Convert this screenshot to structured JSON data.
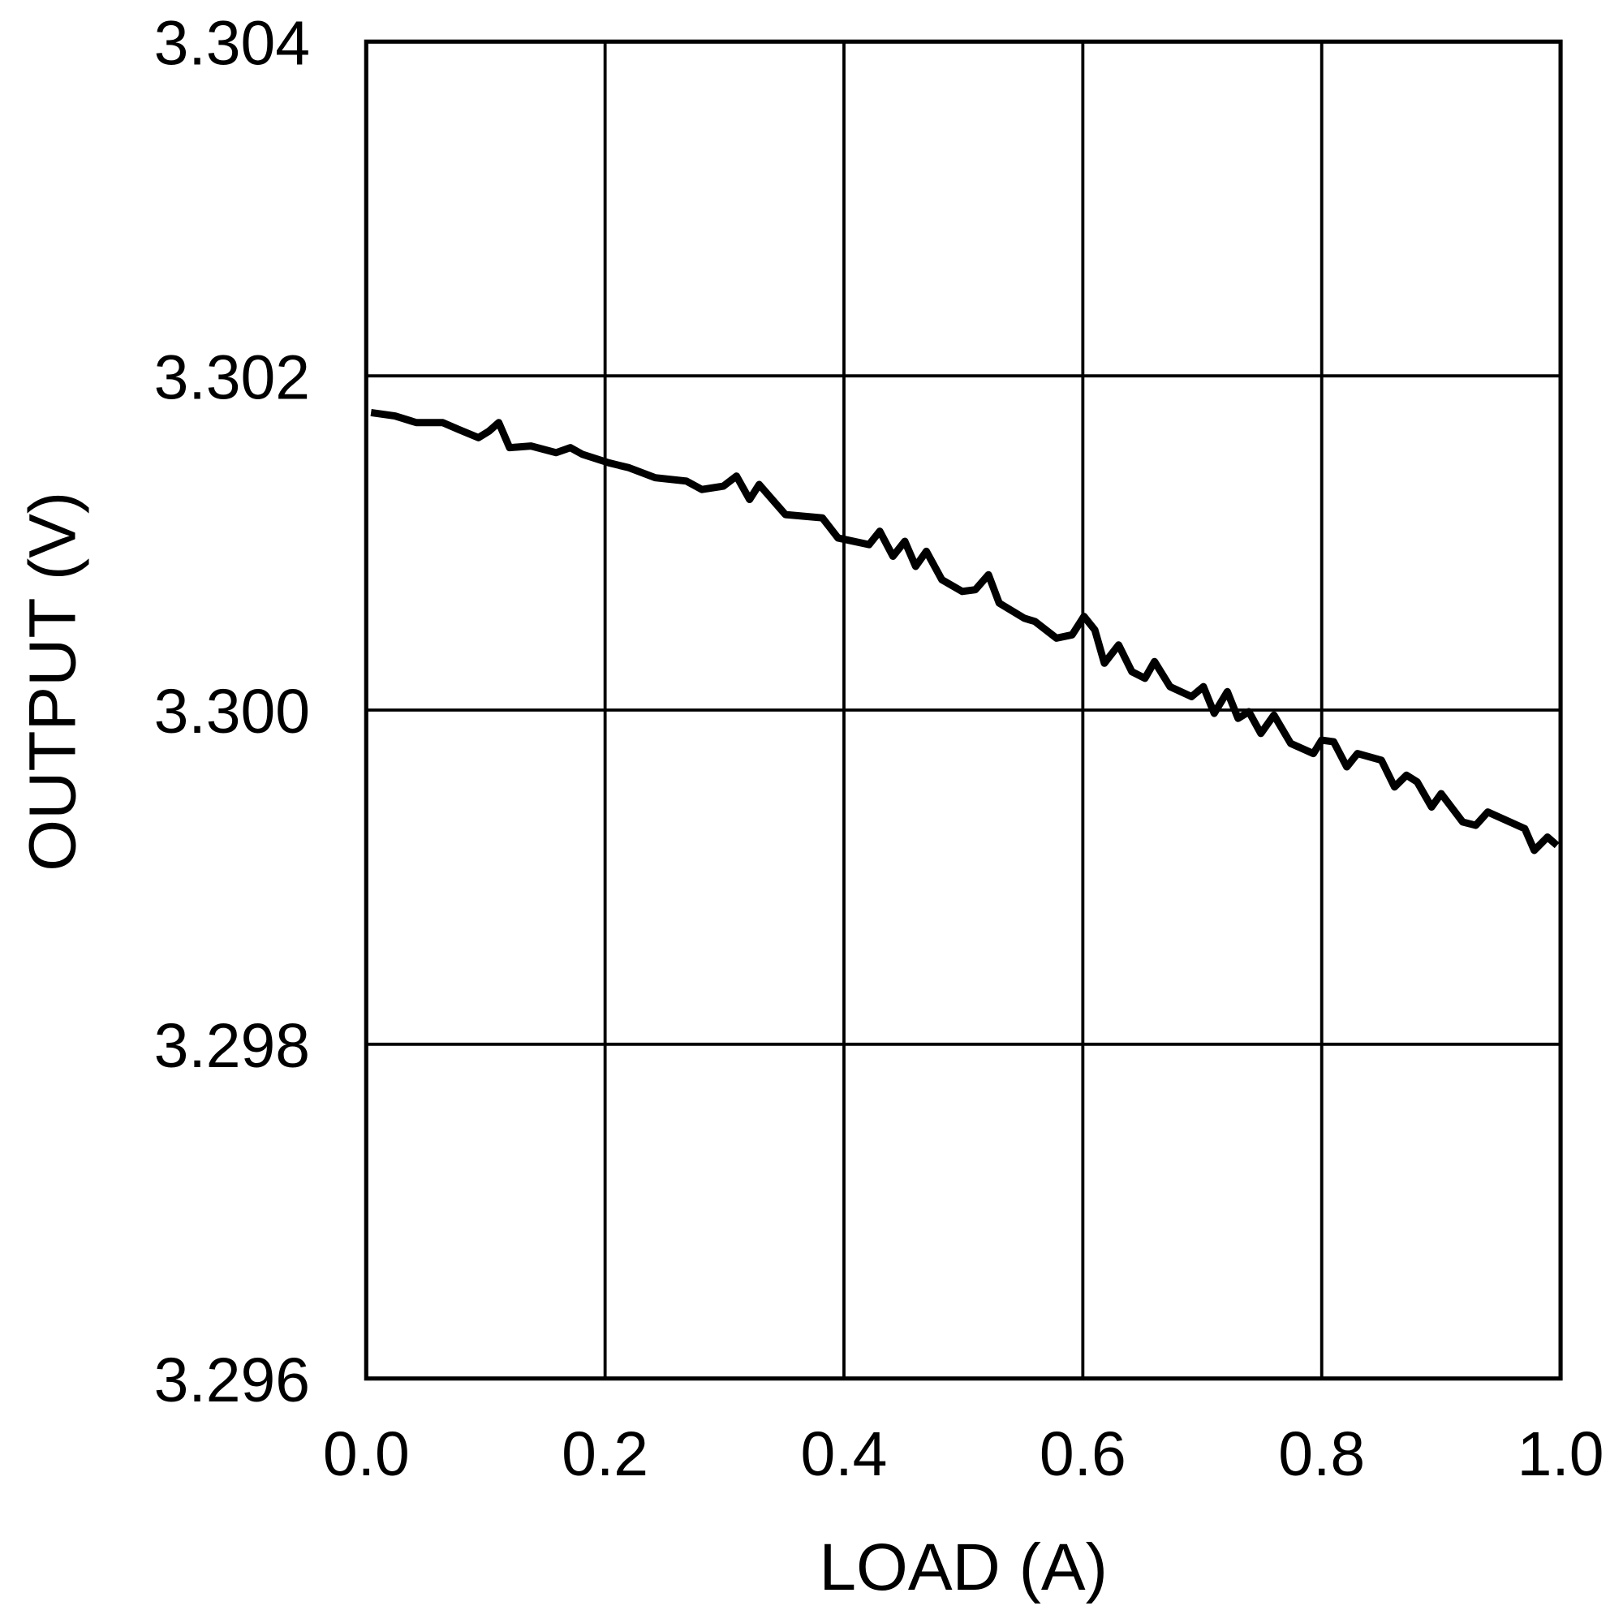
{
  "chart_data": {
    "type": "line",
    "title": "",
    "xlabel": "LOAD (A)",
    "ylabel": "OUTPUT (V)",
    "xlim": [
      0.0,
      1.0
    ],
    "ylim": [
      3.296,
      3.304
    ],
    "xticks": [
      "0.0",
      "0.2",
      "0.4",
      "0.6",
      "0.8",
      "1.0"
    ],
    "yticks": [
      "3.296",
      "3.298",
      "3.300",
      "3.302",
      "3.304"
    ],
    "grid": true,
    "line_color": "#000000",
    "series": [
      {
        "x": [
          0.004,
          0.024,
          0.042,
          0.064,
          0.077,
          0.094,
          0.103,
          0.111,
          0.12,
          0.138,
          0.159,
          0.171,
          0.181,
          0.203,
          0.22,
          0.242,
          0.268,
          0.281,
          0.299,
          0.31,
          0.321,
          0.329,
          0.351,
          0.382,
          0.395,
          0.421,
          0.43,
          0.441,
          0.451,
          0.46,
          0.469,
          0.482,
          0.499,
          0.51,
          0.521,
          0.53,
          0.551,
          0.56,
          0.578,
          0.591,
          0.601,
          0.61,
          0.618,
          0.63,
          0.641,
          0.652,
          0.66,
          0.673,
          0.691,
          0.701,
          0.71,
          0.721,
          0.73,
          0.739,
          0.749,
          0.76,
          0.774,
          0.793,
          0.8,
          0.81,
          0.821,
          0.83,
          0.85,
          0.861,
          0.871,
          0.88,
          0.892,
          0.9,
          0.918,
          0.929,
          0.939,
          0.97,
          0.978,
          0.989,
          0.997
        ],
        "y": [
          3.30178,
          3.30176,
          3.30172,
          3.30172,
          3.30168,
          3.30163,
          3.30167,
          3.30172,
          3.30157,
          3.30158,
          3.30154,
          3.30157,
          3.30153,
          3.30148,
          3.30145,
          3.30139,
          3.30137,
          3.30132,
          3.30134,
          3.3014,
          3.30126,
          3.30135,
          3.30117,
          3.30115,
          3.30103,
          3.30099,
          3.30107,
          3.30092,
          3.30101,
          3.30086,
          3.30095,
          3.30078,
          3.30071,
          3.30072,
          3.30081,
          3.30064,
          3.30055,
          3.30053,
          3.30043,
          3.30045,
          3.30056,
          3.30048,
          3.30028,
          3.30039,
          3.30023,
          3.30019,
          3.30029,
          3.30014,
          3.30008,
          3.30014,
          3.29998,
          3.30011,
          3.29995,
          3.29999,
          3.29986,
          3.29997,
          3.2998,
          3.29974,
          3.29982,
          3.29981,
          3.29966,
          3.29974,
          3.2997,
          3.29954,
          3.29961,
          3.29957,
          3.29942,
          3.2995,
          3.29933,
          3.29931,
          3.29939,
          3.29929,
          3.29916,
          3.29924,
          3.29919
        ]
      }
    ]
  }
}
